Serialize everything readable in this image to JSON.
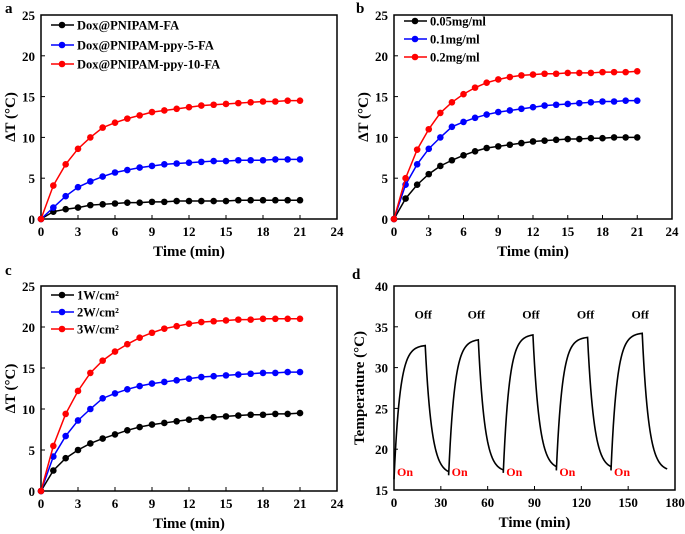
{
  "chart_data": [
    {
      "panel": "a",
      "type": "line",
      "xlabel": "Time (min)",
      "ylabel": "ΔT (°C)",
      "xlim": [
        0,
        24
      ],
      "ylim": [
        0,
        25
      ],
      "xticks": [
        0,
        3,
        6,
        9,
        12,
        15,
        18,
        21,
        24
      ],
      "yticks": [
        0,
        5,
        10,
        15,
        20,
        25
      ],
      "legend": "top-left",
      "x": [
        0,
        1,
        2,
        3,
        4,
        5,
        6,
        7,
        8,
        9,
        10,
        11,
        12,
        13,
        14,
        15,
        16,
        17,
        18,
        19,
        20,
        21
      ],
      "series": [
        {
          "name": "Dox@PNIPAM-FA",
          "color": "#000000",
          "values": [
            0,
            0.9,
            1.2,
            1.4,
            1.7,
            1.8,
            1.9,
            2.0,
            2.0,
            2.1,
            2.1,
            2.2,
            2.2,
            2.2,
            2.2,
            2.2,
            2.3,
            2.3,
            2.3,
            2.3,
            2.3,
            2.3
          ]
        },
        {
          "name": "Dox@PNIPAM-ppy-5-FA",
          "color": "#0000ff",
          "values": [
            0,
            1.4,
            2.8,
            3.9,
            4.6,
            5.2,
            5.7,
            6.0,
            6.3,
            6.5,
            6.7,
            6.8,
            6.9,
            7.0,
            7.1,
            7.1,
            7.2,
            7.2,
            7.2,
            7.3,
            7.3,
            7.3
          ]
        },
        {
          "name": "Dox@PNIPAM-ppy-10-FA",
          "color": "#ff0000",
          "values": [
            0,
            4.1,
            6.7,
            8.6,
            10,
            11.2,
            11.8,
            12.3,
            12.7,
            13.1,
            13.3,
            13.5,
            13.7,
            13.9,
            14,
            14.1,
            14.2,
            14.3,
            14.4,
            14.4,
            14.5,
            14.5
          ]
        }
      ]
    },
    {
      "panel": "b",
      "type": "line",
      "xlabel": "Time (min)",
      "ylabel": "ΔT (°C)",
      "xlim": [
        0,
        24
      ],
      "ylim": [
        0,
        25
      ],
      "xticks": [
        0,
        3,
        6,
        9,
        12,
        15,
        18,
        21,
        24
      ],
      "yticks": [
        0,
        5,
        10,
        15,
        20,
        25
      ],
      "legend": "top-left",
      "x": [
        0,
        1,
        2,
        3,
        4,
        5,
        6,
        7,
        8,
        9,
        10,
        11,
        12,
        13,
        14,
        15,
        16,
        17,
        18,
        19,
        20,
        21
      ],
      "series": [
        {
          "name": "0.05mg/ml",
          "color": "#000000",
          "values": [
            0,
            2.5,
            4.2,
            5.5,
            6.5,
            7.2,
            7.8,
            8.3,
            8.7,
            8.9,
            9.1,
            9.3,
            9.5,
            9.6,
            9.7,
            9.8,
            9.8,
            9.9,
            9.9,
            10,
            10,
            10
          ]
        },
        {
          "name": "0.1mg/ml",
          "color": "#0000ff",
          "values": [
            0,
            4.2,
            6.7,
            8.6,
            10,
            11.3,
            11.9,
            12.4,
            12.8,
            13.1,
            13.3,
            13.5,
            13.7,
            13.9,
            14,
            14.1,
            14.2,
            14.3,
            14.4,
            14.4,
            14.5,
            14.5
          ]
        },
        {
          "name": "0.2mg/ml",
          "color": "#ff0000",
          "values": [
            0,
            5,
            8.5,
            11,
            13,
            14.3,
            15.3,
            16.1,
            16.7,
            17.1,
            17.4,
            17.6,
            17.7,
            17.8,
            17.8,
            17.9,
            17.9,
            17.9,
            18,
            18,
            18,
            18.1
          ]
        }
      ]
    },
    {
      "panel": "c",
      "type": "line",
      "xlabel": "Time (min)",
      "ylabel": "ΔT (°C)",
      "xlim": [
        0,
        24
      ],
      "ylim": [
        0,
        25
      ],
      "xticks": [
        0,
        3,
        6,
        9,
        12,
        15,
        18,
        21,
        24
      ],
      "yticks": [
        0,
        5,
        10,
        15,
        20,
        25
      ],
      "legend": "top-left",
      "x": [
        0,
        1,
        2,
        3,
        4,
        5,
        6,
        7,
        8,
        9,
        10,
        11,
        12,
        13,
        14,
        15,
        16,
        17,
        18,
        19,
        20,
        21
      ],
      "series": [
        {
          "name": "1W/cm²",
          "color": "#000000",
          "values": [
            0,
            2.5,
            4,
            5,
            5.8,
            6.4,
            6.9,
            7.4,
            7.8,
            8.1,
            8.3,
            8.5,
            8.7,
            8.9,
            9,
            9.1,
            9.2,
            9.3,
            9.3,
            9.4,
            9.4,
            9.5
          ]
        },
        {
          "name": "2W/cm²",
          "color": "#0000ff",
          "values": [
            0,
            4.2,
            6.7,
            8.6,
            10,
            11.3,
            11.9,
            12.4,
            12.8,
            13.1,
            13.3,
            13.5,
            13.7,
            13.9,
            14,
            14.1,
            14.2,
            14.3,
            14.4,
            14.4,
            14.5,
            14.5
          ]
        },
        {
          "name": "3W/cm²",
          "color": "#ff0000",
          "values": [
            0,
            5.5,
            9.4,
            12.2,
            14.4,
            15.9,
            17,
            17.9,
            18.7,
            19.3,
            19.8,
            20.1,
            20.4,
            20.6,
            20.7,
            20.8,
            20.9,
            20.9,
            21,
            21,
            21,
            21
          ]
        }
      ]
    },
    {
      "panel": "d",
      "type": "line",
      "xlabel": "Time (min)",
      "ylabel": "Temperature (°C)",
      "xlim": [
        0,
        180
      ],
      "ylim": [
        15,
        40
      ],
      "xticks": [
        0,
        30,
        60,
        90,
        120,
        150,
        180
      ],
      "yticks": [
        15,
        20,
        25,
        30,
        35,
        40
      ],
      "cycles": [
        {
          "on": 0,
          "off": 20,
          "start": 16.3,
          "peak": 32.7
        },
        {
          "on": 35,
          "off": 54,
          "start": 16.8,
          "peak": 33.4
        },
        {
          "on": 70,
          "off": 89,
          "start": 17.1,
          "peak": 34.0
        },
        {
          "on": 104,
          "off": 124,
          "start": 17.4,
          "peak": 33.7
        },
        {
          "on": 139,
          "off": 159,
          "start": 17.4,
          "peak": 34.2
        }
      ],
      "end": {
        "time": 175,
        "temp": 17.2
      },
      "annotations": {
        "on": "On",
        "off": "Off",
        "on_color": "#ff0000",
        "off_color": "#000000"
      }
    }
  ]
}
